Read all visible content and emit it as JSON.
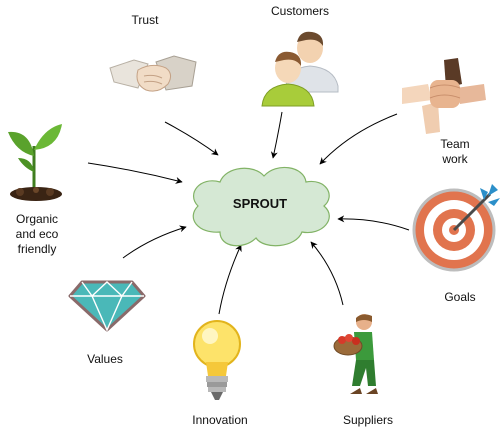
{
  "center": {
    "label": "SPROUT",
    "fill": "#d5e8d4",
    "stroke": "#82b366"
  },
  "nodes": {
    "trust": {
      "label": "Trust",
      "icon": "handshake-icon"
    },
    "customers": {
      "label": "Customers",
      "icon": "people-icon"
    },
    "teamwork": {
      "label": "Team\nwork",
      "icon": "joined-hands-icon"
    },
    "organic": {
      "label": "Organic\nand eco\nfriendly",
      "icon": "seedling-icon"
    },
    "goals": {
      "label": "Goals",
      "icon": "target-icon"
    },
    "values": {
      "label": "Values",
      "icon": "diamond-icon"
    },
    "innovation": {
      "label": "Innovation",
      "icon": "light-bulb-icon"
    },
    "suppliers": {
      "label": "Suppliers",
      "icon": "farmer-icon"
    }
  },
  "colors": {
    "arrow": "#000000"
  }
}
